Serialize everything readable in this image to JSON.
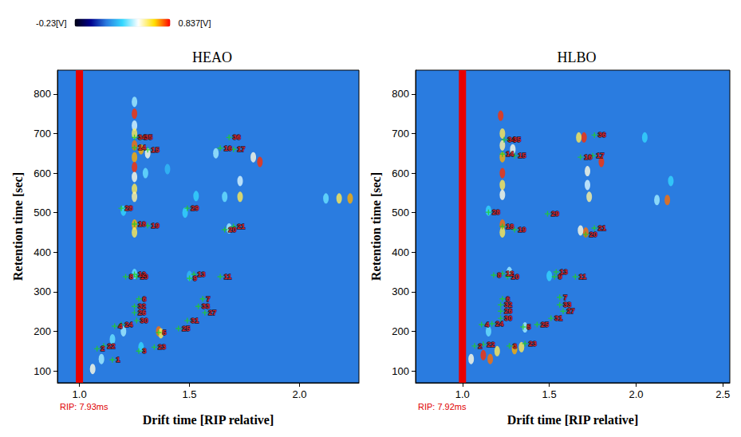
{
  "chart_data": [
    {
      "type": "scatter",
      "title": "HEAO",
      "x_label": "Drift time [RIP relative]",
      "y_label": "Retention time [sec]",
      "xlim": [
        0.9,
        2.27
      ],
      "xticks": [
        {
          "value": 1,
          "label": "1.0"
        },
        {
          "value": 1.5,
          "label": "1.5"
        },
        {
          "value": 2,
          "label": "2.0"
        }
      ],
      "ylim": [
        70,
        860
      ],
      "yticks": [
        100,
        200,
        300,
        400,
        500,
        600,
        700,
        800
      ],
      "annotation": "RIP: 7.93ms",
      "rip": {
        "x": 1,
        "color": "#e80000"
      },
      "colorbar": {
        "range": [
          -0.23,
          0.837
        ],
        "labels": [
          "-0.23[V]",
          "0.837[V]"
        ],
        "colors": [
          "#000010",
          "#00008c",
          "#2a7ce0",
          "#35d8ff",
          "#ffffff",
          "#ffe000",
          "#ff0000"
        ]
      },
      "marker": "cross",
      "color": "#20d020",
      "signal": [
        [
          1.25,
          750,
          0.8
        ],
        [
          1.25,
          720,
          0.45
        ],
        [
          1.25,
          700,
          0.6
        ],
        [
          1.25,
          670,
          0.75
        ],
        [
          1.25,
          640,
          0.7
        ],
        [
          1.25,
          615,
          0.8
        ],
        [
          1.25,
          590,
          0.5
        ],
        [
          1.25,
          560,
          0.6
        ],
        [
          1.25,
          540,
          0.55
        ],
        [
          1.25,
          470,
          0.7
        ],
        [
          1.25,
          450,
          0.6
        ],
        [
          1.25,
          345,
          0.35
        ],
        [
          1.28,
          660,
          0.7
        ],
        [
          1.31,
          650,
          0.5
        ],
        [
          1.36,
          200,
          0.75
        ],
        [
          1.37,
          195,
          0.6
        ],
        [
          1.82,
          628,
          0.8
        ],
        [
          1.79,
          640,
          0.5
        ],
        [
          1.73,
          580,
          0.45
        ],
        [
          1.73,
          540,
          0.6
        ],
        [
          1.66,
          540,
          0.35
        ],
        [
          2.18,
          536,
          0.6
        ],
        [
          2.23,
          536,
          0.7
        ],
        [
          2.12,
          536,
          0.35
        ],
        [
          1.68,
          460,
          0.4
        ],
        [
          1.62,
          650,
          0.4
        ],
        [
          1.53,
          542,
          0.3
        ],
        [
          1.2,
          200,
          0.4
        ],
        [
          1.15,
          180,
          0.35
        ],
        [
          1.1,
          130,
          0.4
        ],
        [
          1.28,
          160,
          0.3
        ],
        [
          1.06,
          105,
          0.5
        ],
        [
          1.3,
          600,
          0.35
        ],
        [
          1.48,
          500,
          0.3
        ],
        [
          1.2,
          505,
          0.3
        ],
        [
          1.25,
          780,
          0.4
        ],
        [
          1.4,
          610,
          0.25
        ],
        [
          1.5,
          340,
          0.25
        ]
      ],
      "markers": [
        {
          "label": "1",
          "x": 1.15,
          "y": 128
        },
        {
          "label": "2",
          "x": 1.08,
          "y": 156
        },
        {
          "label": "3",
          "x": 1.27,
          "y": 150
        },
        {
          "label": "4",
          "x": 1.16,
          "y": 213
        },
        {
          "label": "5",
          "x": 1.36,
          "y": 197
        },
        {
          "label": "6",
          "x": 1.27,
          "y": 282
        },
        {
          "label": "7",
          "x": 1.56,
          "y": 282
        },
        {
          "label": "8",
          "x": 1.21,
          "y": 338
        },
        {
          "label": "9",
          "x": 1.5,
          "y": 334
        },
        {
          "label": "10",
          "x": 1.26,
          "y": 338
        },
        {
          "label": "11",
          "x": 1.64,
          "y": 338
        },
        {
          "label": "12",
          "x": 1.25,
          "y": 344
        },
        {
          "label": "13",
          "x": 1.52,
          "y": 344
        },
        {
          "label": "14",
          "x": 1.25,
          "y": 664
        },
        {
          "label": "15",
          "x": 1.31,
          "y": 659
        },
        {
          "label": "16",
          "x": 1.64,
          "y": 663
        },
        {
          "label": "17",
          "x": 1.7,
          "y": 660
        },
        {
          "label": "18",
          "x": 1.25,
          "y": 471
        },
        {
          "label": "19",
          "x": 1.31,
          "y": 467
        },
        {
          "label": "20",
          "x": 1.66,
          "y": 457
        },
        {
          "label": "21",
          "x": 1.7,
          "y": 465
        },
        {
          "label": "22",
          "x": 1.11,
          "y": 163
        },
        {
          "label": "23",
          "x": 1.34,
          "y": 160
        },
        {
          "label": "24",
          "x": 1.19,
          "y": 217
        },
        {
          "label": "25",
          "x": 1.45,
          "y": 207
        },
        {
          "label": "26",
          "x": 1.25,
          "y": 247
        },
        {
          "label": "27",
          "x": 1.57,
          "y": 247
        },
        {
          "label": "28",
          "x": 1.19,
          "y": 511
        },
        {
          "label": "29",
          "x": 1.49,
          "y": 511
        },
        {
          "label": "30",
          "x": 1.26,
          "y": 227
        },
        {
          "label": "31",
          "x": 1.49,
          "y": 227
        },
        {
          "label": "32",
          "x": 1.25,
          "y": 263
        },
        {
          "label": "33",
          "x": 1.54,
          "y": 263
        },
        {
          "label": "34",
          "x": 1.25,
          "y": 690
        },
        {
          "label": "35",
          "x": 1.28,
          "y": 690
        },
        {
          "label": "36",
          "x": 1.68,
          "y": 690
        }
      ]
    },
    {
      "type": "scatter",
      "title": "HLBO",
      "x_label": "Drift time [RIP relative]",
      "y_label": "Retention time [sec]",
      "xlim": [
        0.73,
        2.54
      ],
      "xticks": [
        {
          "value": 1,
          "label": "1.0"
        },
        {
          "value": 1.5,
          "label": "1.5"
        },
        {
          "value": 2,
          "label": "2.0"
        },
        {
          "value": 2.5,
          "label": "2.5"
        }
      ],
      "ylim": [
        70,
        860
      ],
      "yticks": [
        100,
        200,
        300,
        400,
        500,
        600,
        700,
        800
      ],
      "annotation": "RIP: 7.92ms",
      "rip": {
        "x": 1,
        "color": "#e80000"
      },
      "marker": "cross",
      "color": "#20d020",
      "signal": [
        [
          1.22,
          745,
          0.8
        ],
        [
          1.23,
          700,
          0.6
        ],
        [
          1.23,
          670,
          0.55
        ],
        [
          1.23,
          640,
          0.7
        ],
        [
          1.23,
          600,
          0.8
        ],
        [
          1.23,
          570,
          0.6
        ],
        [
          1.23,
          545,
          0.5
        ],
        [
          1.23,
          470,
          0.75
        ],
        [
          1.23,
          450,
          0.6
        ],
        [
          1.29,
          660,
          0.5
        ],
        [
          1.7,
          690,
          0.8
        ],
        [
          1.67,
          690,
          0.6
        ],
        [
          1.8,
          628,
          0.8
        ],
        [
          1.72,
          605,
          0.5
        ],
        [
          1.72,
          570,
          0.45
        ],
        [
          1.73,
          540,
          0.55
        ],
        [
          2.18,
          532,
          0.75
        ],
        [
          2.12,
          532,
          0.4
        ],
        [
          2.05,
          690,
          0.3
        ],
        [
          2.2,
          580,
          0.3
        ],
        [
          1.71,
          450,
          0.75
        ],
        [
          1.68,
          455,
          0.5
        ],
        [
          1.12,
          140,
          0.8
        ],
        [
          1.16,
          130,
          0.75
        ],
        [
          1.2,
          150,
          0.6
        ],
        [
          1.3,
          155,
          0.7
        ],
        [
          1.34,
          160,
          0.6
        ],
        [
          1.05,
          130,
          0.5
        ],
        [
          1.36,
          210,
          0.4
        ],
        [
          1.5,
          340,
          0.3
        ],
        [
          1.27,
          350,
          0.4
        ],
        [
          1.15,
          200,
          0.35
        ],
        [
          1.15,
          505,
          0.3
        ]
      ],
      "markers": [
        {
          "label": "2",
          "x": 1.07,
          "y": 163
        },
        {
          "label": "3",
          "x": 1.27,
          "y": 163
        },
        {
          "label": "4",
          "x": 1.11,
          "y": 217
        },
        {
          "label": "5",
          "x": 1.35,
          "y": 211
        },
        {
          "label": "6",
          "x": 1.23,
          "y": 282
        },
        {
          "label": "7",
          "x": 1.56,
          "y": 286
        },
        {
          "label": "8",
          "x": 1.18,
          "y": 342
        },
        {
          "label": "9",
          "x": 1.53,
          "y": 338
        },
        {
          "label": "10",
          "x": 1.26,
          "y": 338
        },
        {
          "label": "11",
          "x": 1.65,
          "y": 338
        },
        {
          "label": "12",
          "x": 1.23,
          "y": 346
        },
        {
          "label": "13",
          "x": 1.54,
          "y": 350
        },
        {
          "label": "14",
          "x": 1.23,
          "y": 648
        },
        {
          "label": "15",
          "x": 1.3,
          "y": 644
        },
        {
          "label": "16",
          "x": 1.68,
          "y": 640
        },
        {
          "label": "17",
          "x": 1.75,
          "y": 644
        },
        {
          "label": "18",
          "x": 1.23,
          "y": 465
        },
        {
          "label": "19",
          "x": 1.3,
          "y": 457
        },
        {
          "label": "20",
          "x": 1.71,
          "y": 445
        },
        {
          "label": "21",
          "x": 1.76,
          "y": 461
        },
        {
          "label": "22",
          "x": 1.12,
          "y": 167
        },
        {
          "label": "23",
          "x": 1.36,
          "y": 169
        },
        {
          "label": "24",
          "x": 1.17,
          "y": 219
        },
        {
          "label": "25",
          "x": 1.43,
          "y": 217
        },
        {
          "label": "26",
          "x": 1.22,
          "y": 251
        },
        {
          "label": "27",
          "x": 1.58,
          "y": 251
        },
        {
          "label": "28",
          "x": 1.15,
          "y": 501
        },
        {
          "label": "29",
          "x": 1.49,
          "y": 497
        },
        {
          "label": "30",
          "x": 1.22,
          "y": 233
        },
        {
          "label": "31",
          "x": 1.51,
          "y": 233
        },
        {
          "label": "32",
          "x": 1.22,
          "y": 267
        },
        {
          "label": "33",
          "x": 1.56,
          "y": 267
        },
        {
          "label": "34",
          "x": 1.24,
          "y": 684
        },
        {
          "label": "35",
          "x": 1.27,
          "y": 684
        },
        {
          "label": "36",
          "x": 1.76,
          "y": 696
        }
      ]
    }
  ]
}
